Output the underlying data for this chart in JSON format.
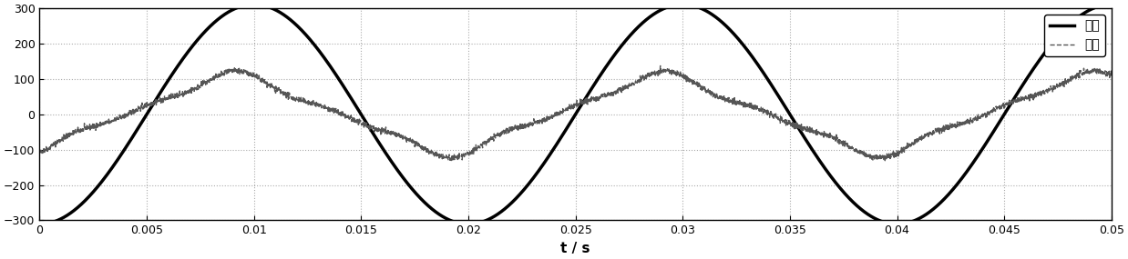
{
  "title": "",
  "xlabel": "t / s",
  "ylabel": "",
  "xlim": [
    0,
    0.05
  ],
  "ylim": [
    -300,
    300
  ],
  "yticks": [
    -300,
    -200,
    -100,
    0,
    100,
    200,
    300
  ],
  "xticks": [
    0,
    0.005,
    0.01,
    0.015,
    0.02,
    0.025,
    0.03,
    0.035,
    0.04,
    0.045,
    0.05
  ],
  "voltage_amplitude": 311,
  "voltage_frequency": 50,
  "voltage_phase": -1.5708,
  "current_amplitude": 100,
  "current_frequency": 50,
  "current_phase": -1.5708,
  "current_phase_shift": 0.3,
  "noise_level": 4,
  "voltage_color": "#000000",
  "current_color": "#555555",
  "voltage_linewidth": 2.5,
  "current_linewidth": 1.0,
  "legend_voltage": "电压",
  "legend_current": "电流",
  "background_color": "#ffffff",
  "grid_color": "#888888",
  "fig_width": 12.38,
  "fig_height": 2.85,
  "dpi": 100
}
